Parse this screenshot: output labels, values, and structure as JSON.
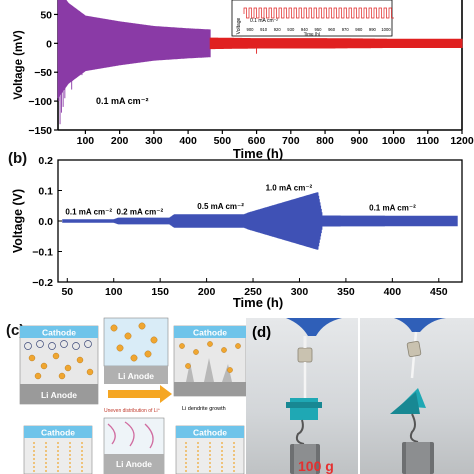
{
  "panel_a": {
    "ylabel": "Voltage (mV)",
    "xlabel": "Time (h)",
    "current_label": "0.1 mA cm⁻²",
    "x_ticks": [
      "100",
      "200",
      "300",
      "400",
      "500",
      "600",
      "700",
      "800",
      "900",
      "1000",
      "1100",
      "1200"
    ],
    "y_ticks": [
      "50",
      "0",
      "−50",
      "−100",
      "−150"
    ],
    "inset": {
      "ylabel": "Voltage",
      "x_ticks": [
        "900",
        "910",
        "920",
        "930",
        "940",
        "950",
        "960",
        "970",
        "980",
        "990",
        "1000"
      ],
      "xlabel": "Time (h)",
      "label": "0.1 mA cm⁻²"
    },
    "colors": {
      "series_1": "#8a3aa6",
      "series_2": "#e02020"
    }
  },
  "panel_b": {
    "letter": "(b)",
    "ylabel": "Voltage (V)",
    "xlabel": "Time (h)",
    "x_ticks": [
      "50",
      "100",
      "150",
      "200",
      "250",
      "300",
      "350",
      "400",
      "450"
    ],
    "y_ticks": [
      "0.2",
      "0.1",
      "0.0",
      "−0.1",
      "−0.2"
    ],
    "annotations": [
      "0.1 mA cm⁻²",
      "0.2 mA cm⁻²",
      "0.5 mA cm⁻²",
      "1.0 mA cm⁻²",
      "0.1 mA cm⁻²"
    ],
    "color": "#3f51b5"
  },
  "panel_c": {
    "letter": "(c)",
    "cathode": "Cathode",
    "anode": "Li Anode",
    "arrow_caption": "Uneven distribution of Li⁺",
    "dendrite_caption": "Li dendrite growth"
  },
  "panel_d": {
    "letter": "(d)",
    "weight_label": "100 g"
  },
  "chart_data": [
    {
      "type": "line",
      "xlabel": "Time (h)",
      "ylabel": "Voltage (mV)",
      "xlim": [
        20,
        1200
      ],
      "ylim": [
        -150,
        75
      ],
      "series": [
        {
          "x": [
            20,
            50,
            100,
            200,
            300,
            400,
            465
          ],
          "y_amplitude": [
            95,
            70,
            48,
            38,
            30,
            26,
            24
          ]
        },
        {
          "x": [
            465,
            600,
            800,
            1000,
            1200
          ],
          "y_amplitude": [
            10,
            9,
            9,
            8,
            8
          ]
        }
      ]
    },
    {
      "type": "line",
      "xlabel": "Time (h)",
      "ylabel": "Voltage (V)",
      "xlim": [
        40,
        475
      ],
      "ylim": [
        -0.2,
        0.2
      ],
      "series": [
        {
          "x": [
            45,
            100,
            105,
            160,
            165,
            240,
            245,
            320,
            325,
            470
          ],
          "y_amplitude": [
            0.006,
            0.006,
            0.011,
            0.011,
            0.022,
            0.022,
            0.028,
            0.095,
            0.018,
            0.017
          ]
        }
      ]
    }
  ]
}
